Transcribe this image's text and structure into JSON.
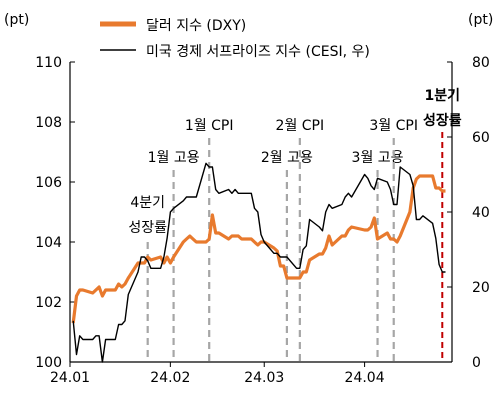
{
  "chart_data": {
    "type": "line",
    "left_axis": {
      "unit_label": "(pt)",
      "ylim": [
        100,
        110
      ],
      "ticks": [
        "100",
        "102",
        "104",
        "106",
        "108",
        "110"
      ]
    },
    "right_axis": {
      "unit_label": "(pt)",
      "ylim": [
        0,
        80
      ],
      "ticks": [
        "0",
        "20",
        "40",
        "60",
        "80"
      ]
    },
    "x_ticks": [
      "24.01",
      "24.02",
      "24.03",
      "24.04"
    ],
    "series": [
      {
        "name": "달러 지수 (DXY)",
        "axis": "left",
        "color": "#E87A2E",
        "x": [
          "2024-01-02",
          "2024-01-03",
          "2024-01-04",
          "2024-01-05",
          "2024-01-08",
          "2024-01-09",
          "2024-01-10",
          "2024-01-11",
          "2024-01-12",
          "2024-01-15",
          "2024-01-16",
          "2024-01-17",
          "2024-01-18",
          "2024-01-19",
          "2024-01-22",
          "2024-01-23",
          "2024-01-24",
          "2024-01-25",
          "2024-01-26",
          "2024-01-29",
          "2024-01-30",
          "2024-01-31",
          "2024-02-01",
          "2024-02-02",
          "2024-02-05",
          "2024-02-06",
          "2024-02-07",
          "2024-02-08",
          "2024-02-09",
          "2024-02-12",
          "2024-02-13",
          "2024-02-14",
          "2024-02-15",
          "2024-02-16",
          "2024-02-19",
          "2024-02-20",
          "2024-02-21",
          "2024-02-22",
          "2024-02-23",
          "2024-02-26",
          "2024-02-27",
          "2024-02-28",
          "2024-02-29",
          "2024-03-01",
          "2024-03-04",
          "2024-03-05",
          "2024-03-06",
          "2024-03-07",
          "2024-03-08",
          "2024-03-11",
          "2024-03-12",
          "2024-03-13",
          "2024-03-14",
          "2024-03-15",
          "2024-03-18",
          "2024-03-19",
          "2024-03-20",
          "2024-03-21",
          "2024-03-22",
          "2024-03-25",
          "2024-03-26",
          "2024-03-27",
          "2024-03-28",
          "2024-04-01",
          "2024-04-02",
          "2024-04-03",
          "2024-04-04",
          "2024-04-05",
          "2024-04-08",
          "2024-04-09",
          "2024-04-10",
          "2024-04-11",
          "2024-04-12",
          "2024-04-15",
          "2024-04-16",
          "2024-04-17",
          "2024-04-18",
          "2024-04-19",
          "2024-04-22",
          "2024-04-23",
          "2024-04-24",
          "2024-04-25",
          "2024-04-26"
        ],
        "values": [
          101.3,
          102.2,
          102.4,
          102.4,
          102.3,
          102.4,
          102.5,
          102.2,
          102.4,
          102.4,
          102.6,
          102.5,
          102.6,
          102.8,
          103.3,
          103.3,
          103.3,
          103.5,
          103.4,
          103.5,
          103.3,
          103.5,
          103.3,
          103.5,
          104.0,
          104.1,
          104.2,
          104.1,
          104.0,
          104.0,
          104.1,
          104.9,
          104.3,
          104.3,
          104.1,
          104.2,
          104.2,
          104.2,
          104.1,
          104.1,
          104.0,
          103.9,
          104.0,
          104.0,
          103.8,
          103.7,
          103.2,
          103.2,
          102.8,
          102.8,
          102.8,
          103.0,
          103.0,
          103.4,
          103.6,
          103.6,
          103.8,
          104.2,
          103.9,
          104.2,
          104.2,
          104.4,
          104.5,
          104.4,
          104.4,
          104.5,
          104.8,
          104.1,
          104.3,
          104.1,
          104.1,
          104.0,
          104.2,
          105.0,
          105.8,
          106.1,
          106.2,
          106.2,
          106.2,
          105.8,
          105.8,
          105.7,
          105.7
        ]
      },
      {
        "name": "미국 경제 서프라이즈 지수 (CESI, 우)",
        "axis": "right",
        "color": "#000000",
        "x": [
          "2024-01-02",
          "2024-01-03",
          "2024-01-04",
          "2024-01-05",
          "2024-01-08",
          "2024-01-09",
          "2024-01-10",
          "2024-01-11",
          "2024-01-12",
          "2024-01-15",
          "2024-01-16",
          "2024-01-17",
          "2024-01-18",
          "2024-01-19",
          "2024-01-22",
          "2024-01-23",
          "2024-01-24",
          "2024-01-25",
          "2024-01-26",
          "2024-01-29",
          "2024-01-30",
          "2024-01-31",
          "2024-02-01",
          "2024-02-02",
          "2024-02-05",
          "2024-02-06",
          "2024-02-07",
          "2024-02-08",
          "2024-02-09",
          "2024-02-12",
          "2024-02-13",
          "2024-02-14",
          "2024-02-15",
          "2024-02-16",
          "2024-02-19",
          "2024-02-20",
          "2024-02-21",
          "2024-02-22",
          "2024-02-23",
          "2024-02-26",
          "2024-02-27",
          "2024-02-28",
          "2024-02-29",
          "2024-03-01",
          "2024-03-04",
          "2024-03-05",
          "2024-03-06",
          "2024-03-07",
          "2024-03-08",
          "2024-03-11",
          "2024-03-12",
          "2024-03-13",
          "2024-03-14",
          "2024-03-15",
          "2024-03-18",
          "2024-03-19",
          "2024-03-20",
          "2024-03-21",
          "2024-03-22",
          "2024-03-25",
          "2024-03-26",
          "2024-03-27",
          "2024-03-28",
          "2024-04-01",
          "2024-04-02",
          "2024-04-03",
          "2024-04-04",
          "2024-04-05",
          "2024-04-08",
          "2024-04-09",
          "2024-04-10",
          "2024-04-11",
          "2024-04-12",
          "2024-04-15",
          "2024-04-16",
          "2024-04-17",
          "2024-04-18",
          "2024-04-19",
          "2024-04-22",
          "2024-04-23",
          "2024-04-24",
          "2024-04-25",
          "2024-04-26"
        ],
        "values": [
          11,
          2,
          7,
          6,
          6,
          7,
          7,
          0,
          6,
          6,
          10,
          10,
          11,
          18,
          24,
          28,
          28,
          27,
          25,
          25,
          28,
          33,
          40,
          41,
          43,
          44,
          44,
          44,
          44,
          53,
          52,
          52,
          46,
          45,
          46,
          45,
          46,
          45,
          45,
          45,
          41,
          40,
          34,
          32,
          29,
          29,
          28,
          28,
          28,
          25,
          25,
          30,
          31,
          38,
          36,
          35,
          40,
          42,
          41,
          42,
          44,
          45,
          44,
          50,
          49,
          47,
          46,
          49,
          48,
          46,
          42,
          42,
          52,
          50,
          47,
          38,
          38,
          39,
          37,
          33,
          26,
          24,
          24
        ]
      }
    ],
    "events": [
      {
        "label": "4분기",
        "label2": "성장률",
        "date": "2024-01-25",
        "style": "gray-dashed"
      },
      {
        "label": "1월 고용",
        "date": "2024-02-02",
        "style": "gray-dashed"
      },
      {
        "label": "1월 CPI",
        "date": "2024-02-13",
        "style": "gray-dashed"
      },
      {
        "label": "2월 고용",
        "date": "2024-03-08",
        "style": "gray-dashed"
      },
      {
        "label": "2월 CPI",
        "date": "2024-03-12",
        "style": "gray-dashed"
      },
      {
        "label": "3월 고용",
        "date": "2024-04-05",
        "style": "gray-dashed"
      },
      {
        "label": "3월 CPI",
        "date": "2024-04-10",
        "style": "gray-dashed"
      },
      {
        "label": "1분기",
        "label2": "성장률",
        "date": "2024-04-25",
        "style": "red-dashed"
      }
    ],
    "legend_position": "top",
    "grid": false
  }
}
